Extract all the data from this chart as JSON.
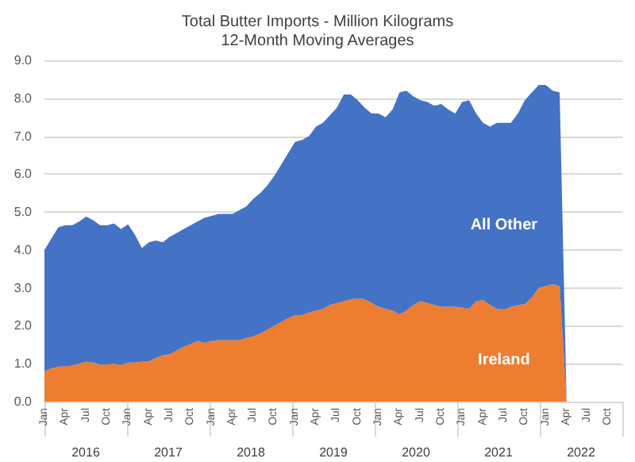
{
  "chart_data": {
    "type": "area",
    "title": "Total Butter Imports - Million Kilograms",
    "subtitle": "12-Month Moving Averages",
    "stacked": true,
    "categories": [
      "Jan",
      null,
      null,
      "Apr",
      null,
      null,
      "Jul",
      null,
      null,
      "Oct",
      null,
      null,
      "Jan",
      null,
      null,
      "Apr",
      null,
      null,
      "Jul",
      null,
      null,
      "Oct",
      null,
      null,
      "Jan",
      null,
      null,
      "Apr",
      null,
      null,
      "Jul",
      null,
      null,
      "Oct",
      null,
      null,
      "Jan",
      null,
      null,
      "Apr",
      null,
      null,
      "Jul",
      null,
      null,
      "Oct",
      null,
      null,
      "Jan",
      null,
      null,
      "Apr",
      null,
      null,
      "Jul",
      null,
      null,
      "Oct",
      null,
      null,
      "Jan",
      null,
      null,
      "Apr",
      null,
      null,
      "Jul",
      null,
      null,
      "Oct",
      null,
      null,
      "Jan",
      null,
      null,
      "Apr",
      null,
      null,
      "Jul",
      null,
      null,
      "Oct",
      null,
      null
    ],
    "series": [
      {
        "name": "Ireland",
        "color": "#ed7d31",
        "values": [
          0.8,
          0.88,
          0.92,
          0.93,
          0.95,
          1.0,
          1.05,
          1.03,
          0.98,
          0.98,
          1.0,
          0.97,
          1.03,
          1.03,
          1.05,
          1.07,
          1.15,
          1.22,
          1.25,
          1.35,
          1.45,
          1.52,
          1.6,
          1.55,
          1.6,
          1.62,
          1.62,
          1.62,
          1.62,
          1.68,
          1.72,
          1.8,
          1.9,
          2.0,
          2.1,
          2.2,
          2.28,
          2.28,
          2.35,
          2.4,
          2.45,
          2.55,
          2.6,
          2.65,
          2.7,
          2.72,
          2.7,
          2.6,
          2.5,
          2.45,
          2.4,
          2.3,
          2.4,
          2.55,
          2.65,
          2.6,
          2.55,
          2.5,
          2.5,
          2.5,
          2.48,
          2.45,
          2.65,
          2.68,
          2.55,
          2.45,
          2.43,
          2.5,
          2.55,
          2.57,
          2.75,
          3.0,
          3.05,
          3.1,
          3.05,
          0,
          0,
          0,
          0,
          0,
          0,
          0,
          0,
          0
        ]
      },
      {
        "name": "All Other",
        "color": "#4472c4",
        "values": [
          3.2,
          3.42,
          3.68,
          3.72,
          3.7,
          3.75,
          3.83,
          3.75,
          3.67,
          3.67,
          3.7,
          3.58,
          3.65,
          3.37,
          3.0,
          3.13,
          3.1,
          2.98,
          3.1,
          3.1,
          3.1,
          3.13,
          3.15,
          3.3,
          3.3,
          3.33,
          3.33,
          3.33,
          3.43,
          3.47,
          3.63,
          3.7,
          3.8,
          3.95,
          4.15,
          4.35,
          4.57,
          4.62,
          4.65,
          4.85,
          4.9,
          5.0,
          5.15,
          5.45,
          5.4,
          5.23,
          5.05,
          5.0,
          5.1,
          5.05,
          5.3,
          5.85,
          5.8,
          5.5,
          5.3,
          5.3,
          5.25,
          5.35,
          5.2,
          5.1,
          5.42,
          5.5,
          4.95,
          4.67,
          4.7,
          4.9,
          4.92,
          4.85,
          5.05,
          5.38,
          5.4,
          5.35,
          5.3,
          5.1,
          5.1,
          0,
          0,
          0,
          0,
          0,
          0,
          0,
          0,
          0
        ]
      }
    ],
    "ylim": [
      0,
      9
    ],
    "yticks": [
      {
        "value": 0,
        "label": "0.0"
      },
      {
        "value": 1,
        "label": "1.0"
      },
      {
        "value": 2,
        "label": "2.0"
      },
      {
        "value": 3,
        "label": "3.0"
      },
      {
        "value": 4,
        "label": "4.0"
      },
      {
        "value": 5,
        "label": "5.0"
      },
      {
        "value": 6,
        "label": "6.0"
      },
      {
        "value": 7,
        "label": "7.0"
      },
      {
        "value": 8,
        "label": "8.0"
      },
      {
        "value": 9,
        "label": "9.0"
      }
    ],
    "grid": "y",
    "legend": false,
    "annotations": [
      "2016",
      "2017",
      "2018",
      "2019",
      "2020",
      "2021",
      "2022"
    ]
  }
}
